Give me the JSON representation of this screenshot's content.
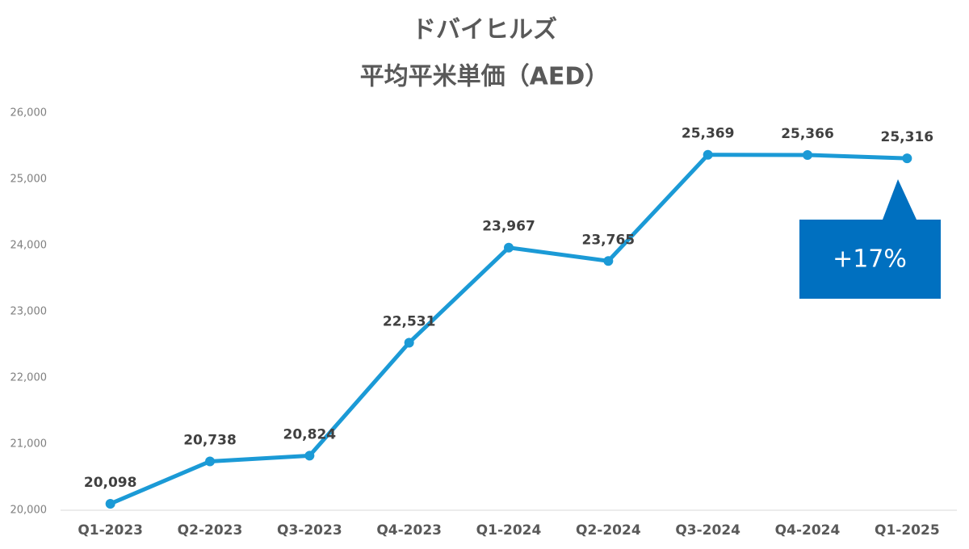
{
  "chart_data": {
    "type": "line",
    "title": "ドバイヒルズ",
    "subtitle": "平均平米単価（AED）",
    "categories": [
      "Q1-2023",
      "Q2-2023",
      "Q3-2023",
      "Q4-2023",
      "Q1-2024",
      "Q2-2024",
      "Q3-2024",
      "Q4-2024",
      "Q1-2025"
    ],
    "values": [
      20098,
      20738,
      20824,
      22531,
      23967,
      23765,
      25369,
      25366,
      25316
    ],
    "value_labels": [
      "20,098",
      "20,738",
      "20,824",
      "22,531",
      "23,967",
      "23,765",
      "25,369",
      "25,366",
      "25,316"
    ],
    "color": "#1b9ad6",
    "ylim": [
      20000,
      26000
    ],
    "yticks": [
      {
        "value": 20000,
        "label": "20,000"
      },
      {
        "value": 21000,
        "label": "21,000"
      },
      {
        "value": 22000,
        "label": "22,000"
      },
      {
        "value": 23000,
        "label": "23,000"
      },
      {
        "value": 24000,
        "label": "24,000"
      },
      {
        "value": 25000,
        "label": "25,000"
      },
      {
        "value": 26000,
        "label": "26,000"
      }
    ],
    "grid": false,
    "annotation": "+17%"
  }
}
